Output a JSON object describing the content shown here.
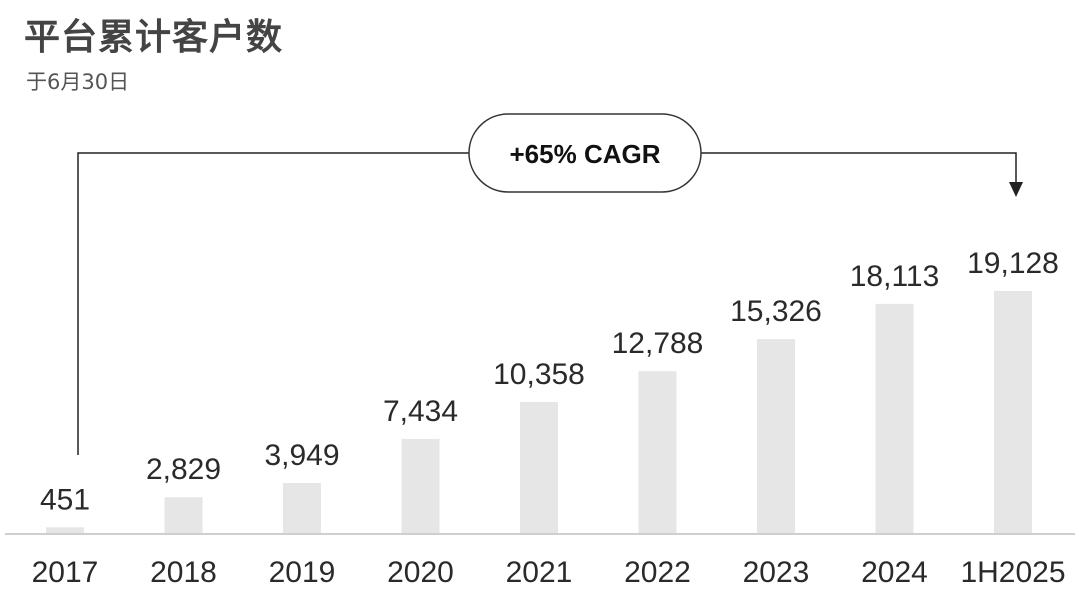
{
  "header": {
    "title": "平台累计客户数",
    "subtitle": "于6月30日"
  },
  "annotation": {
    "label": "+65% CAGR"
  },
  "chart_data": {
    "type": "bar",
    "title": "平台累计客户数",
    "subtitle": "于6月30日",
    "categories": [
      "2017",
      "2018",
      "2019",
      "2020",
      "2021",
      "2022",
      "2023",
      "2024",
      "1H2025"
    ],
    "values": [
      451,
      2829,
      3949,
      7434,
      10358,
      12788,
      15326,
      18113,
      19128
    ],
    "value_labels": [
      "451",
      "2,829",
      "3,949",
      "7,434",
      "10,358",
      "12,788",
      "15,326",
      "18,113",
      "19,128"
    ],
    "ylim": [
      0,
      19128
    ],
    "grid": false,
    "legend": "none",
    "annotations": [
      "+65% CAGR"
    ],
    "colors": {
      "bar": "#e6e6e6",
      "baseline": "#cfcfcf",
      "connector": "#222222"
    }
  }
}
